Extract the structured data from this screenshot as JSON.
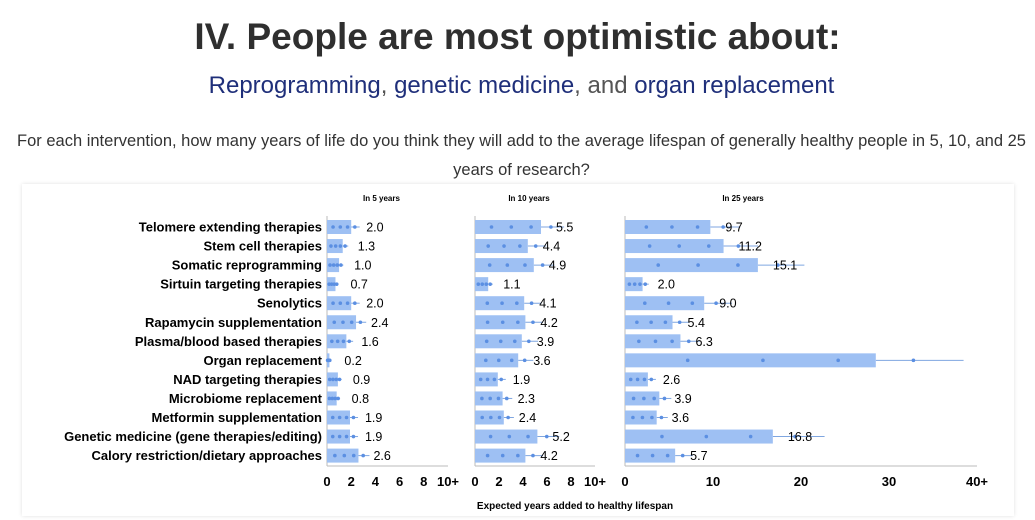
{
  "header": {
    "title": "IV. People are most optimistic about:",
    "subtitle_parts": [
      "Reprogramming",
      ", ",
      "genetic medicine",
      ", and ",
      "organ replacement"
    ],
    "question": "For each intervention, how many years of life do you think they will add to the average lifespan of generally healthy people in 5, 10, and 25 years of research?"
  },
  "colors": {
    "bar": "#9ec0f3",
    "whisker": "#7fa6e0",
    "dot": "#5b8fe2",
    "axis": "#bbbbbb"
  },
  "chart_data": {
    "type": "bar",
    "xlabel": "Expected years added to healthy lifespan",
    "categories": [
      "Telomere extending therapies",
      "Stem cell therapies",
      "Somatic reprogramming",
      "Sirtuin targeting therapies",
      "Senolytics",
      "Rapamycin supplementation",
      "Plasma/blood based therapies",
      "Organ replacement",
      "NAD targeting therapies",
      "Microbiome replacement",
      "Metformin supplementation",
      "Genetic medicine (gene therapies/editing)",
      "Calory restriction/dietary approaches"
    ],
    "series": [
      {
        "name": "In 5 years",
        "xlim": [
          0,
          10
        ],
        "ticks": [
          "0",
          "2",
          "4",
          "6",
          "8",
          "10+"
        ],
        "values": [
          2.0,
          1.3,
          1.0,
          0.7,
          2.0,
          2.4,
          1.6,
          0.2,
          0.9,
          0.8,
          1.9,
          1.9,
          2.6
        ],
        "labels": [
          "2.0",
          "1.3",
          "1.0",
          "0.7",
          "2.0",
          "2.4",
          "1.6",
          "0.2",
          "0.9",
          "0.8",
          "1.9",
          "1.9",
          "2.6"
        ]
      },
      {
        "name": "In 10 years",
        "xlim": [
          0,
          10
        ],
        "ticks": [
          "0",
          "2",
          "4",
          "6",
          "8",
          "10+"
        ],
        "values": [
          5.5,
          4.4,
          4.9,
          1.1,
          4.1,
          4.2,
          3.9,
          3.6,
          1.9,
          2.3,
          2.4,
          5.2,
          4.2
        ],
        "labels": [
          "5.5",
          "4.4",
          "4.9",
          "1.1",
          "4.1",
          "4.2",
          "3.9",
          "3.6",
          "1.9",
          "2.3",
          "2.4",
          "5.2",
          "4.2"
        ]
      },
      {
        "name": "In 25 years",
        "xlim": [
          0,
          40
        ],
        "ticks": [
          "0",
          "10",
          "20",
          "30",
          "40+"
        ],
        "values": [
          9.7,
          11.2,
          15.1,
          2.0,
          9.0,
          5.4,
          6.3,
          28.5,
          2.6,
          3.9,
          3.6,
          16.8,
          5.7
        ],
        "labels": [
          "9.7",
          "11.2",
          "15.1",
          "2.0",
          "9.0",
          "5.4",
          "6.3",
          "",
          "2.6",
          "3.9",
          "3.6",
          "16.8",
          "5.7"
        ]
      }
    ]
  }
}
